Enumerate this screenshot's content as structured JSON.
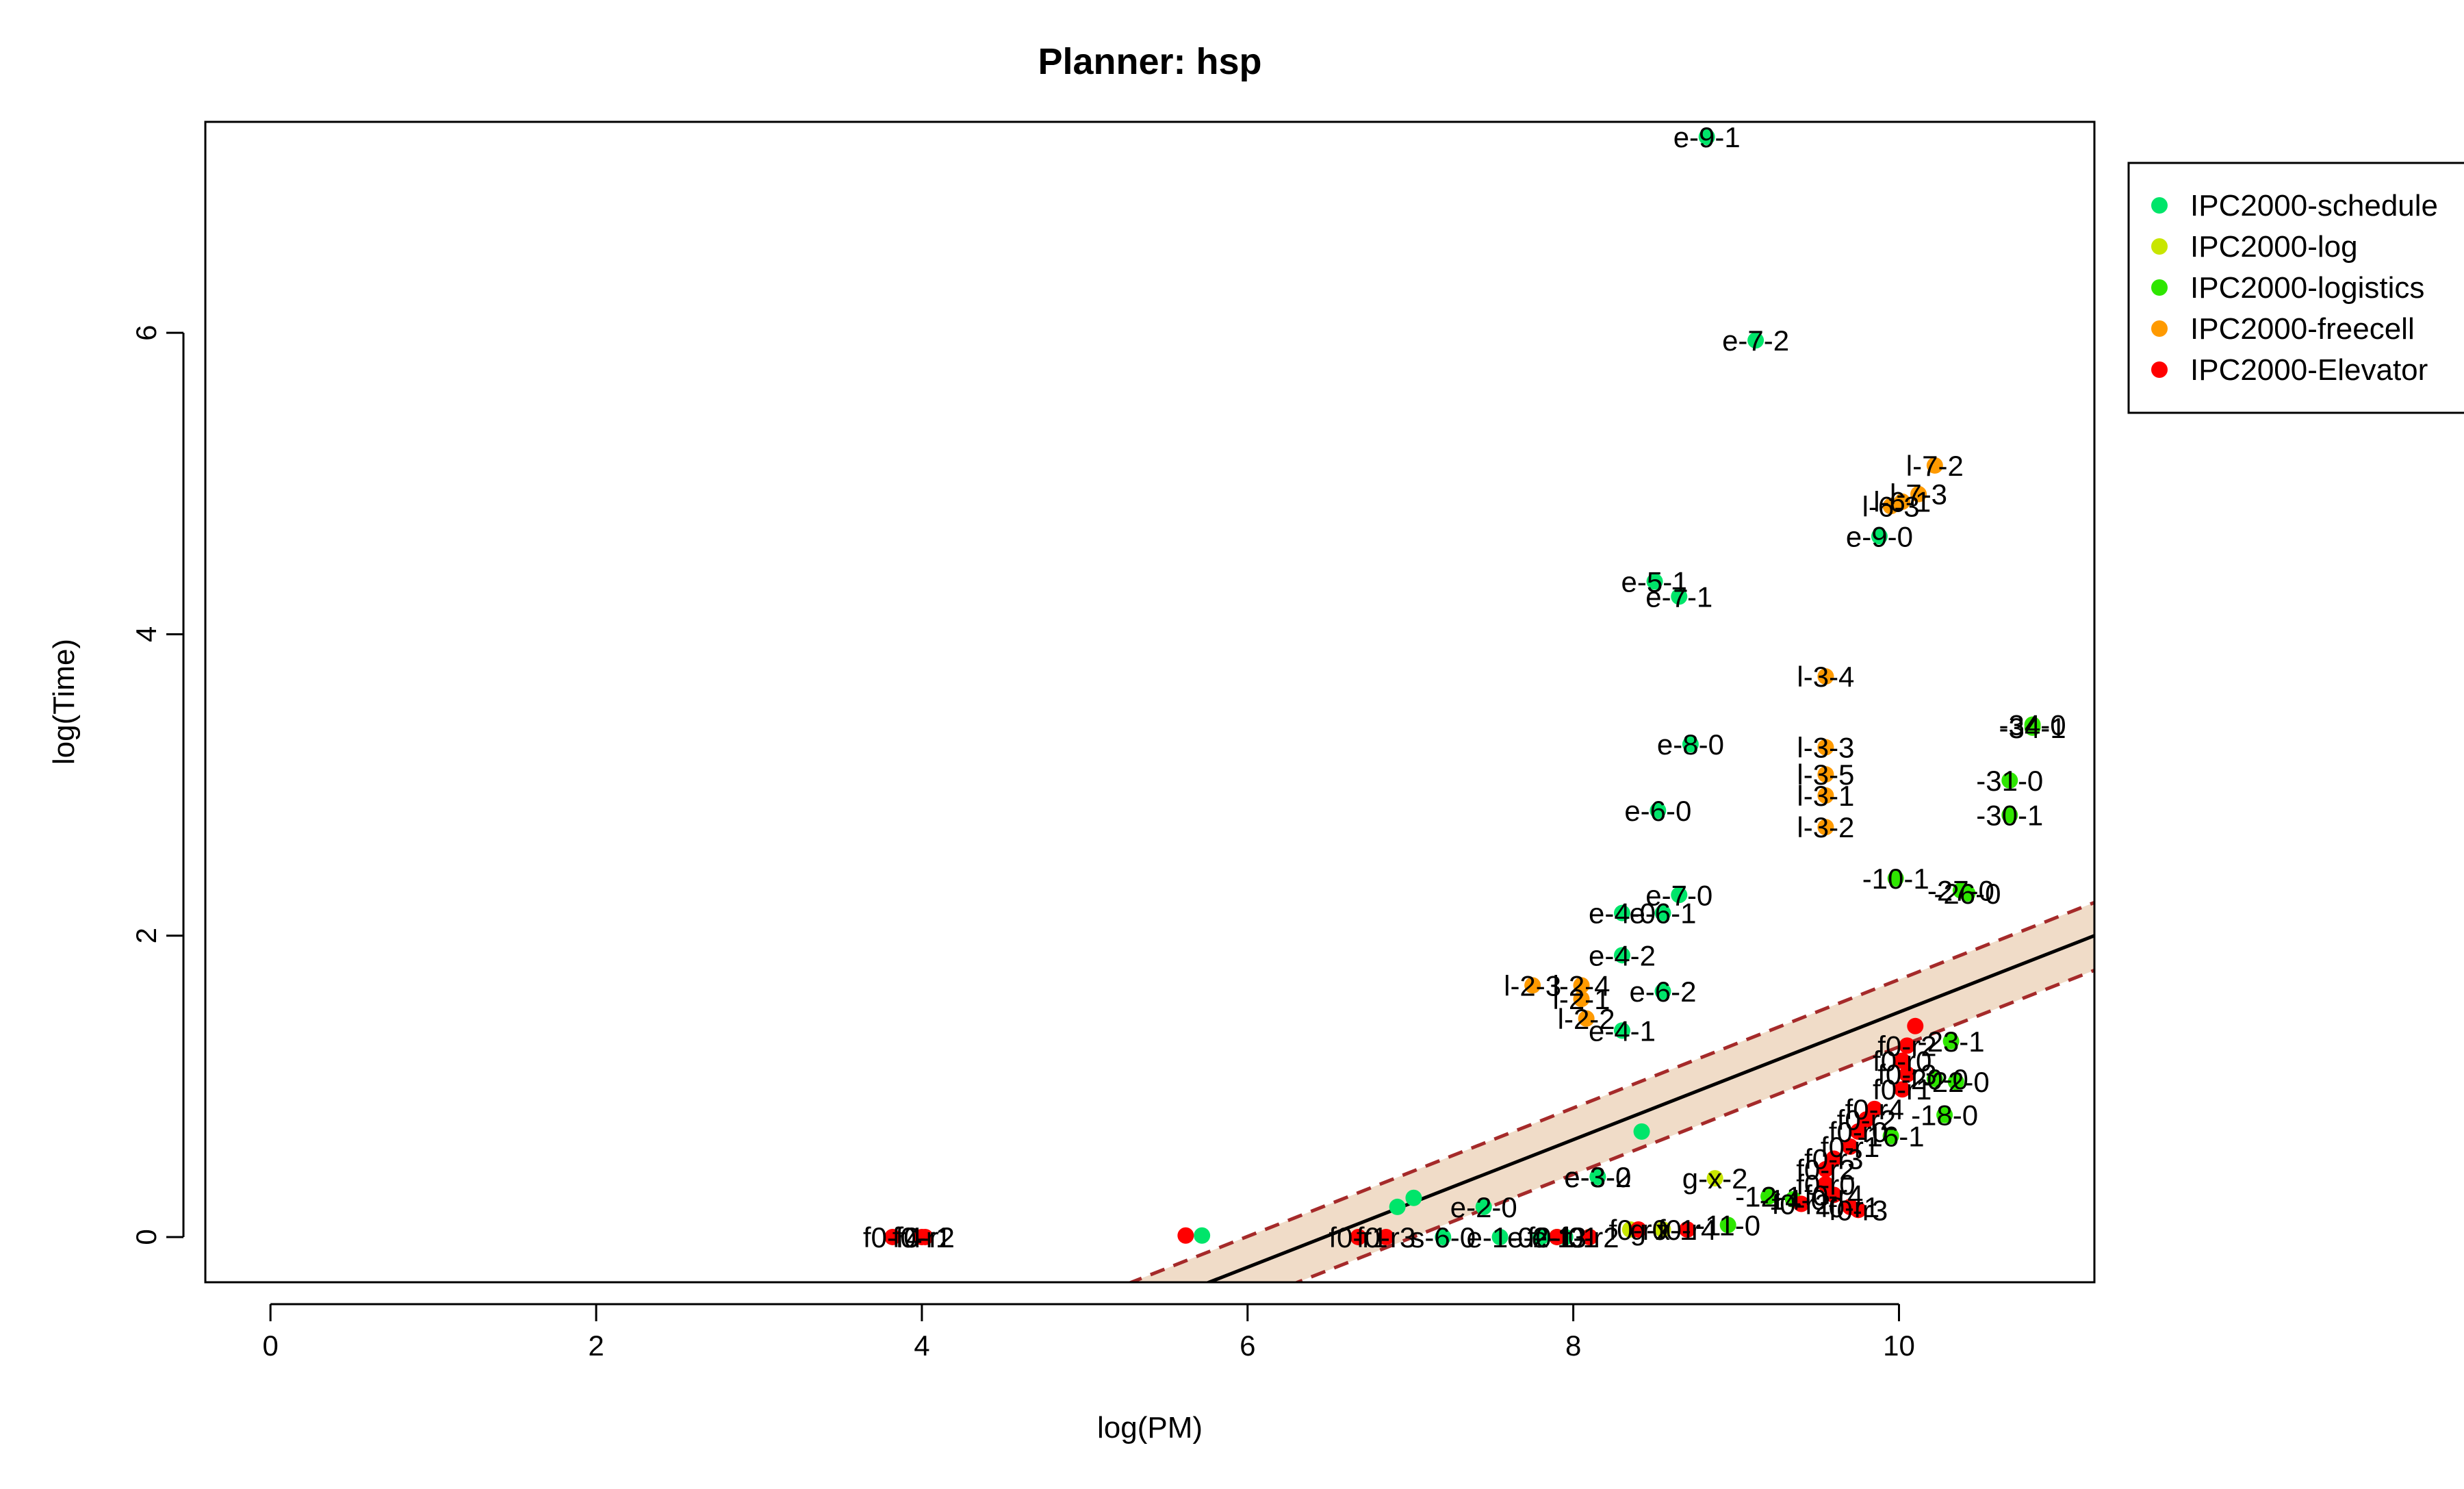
{
  "chart_data": {
    "type": "scatter",
    "title": "Planner: hsp",
    "xlabel": "log(PM)",
    "ylabel": "log(Time)",
    "xlim": [
      -0.4,
      11.2
    ],
    "ylim": [
      -0.3,
      7.4
    ],
    "xticks": [
      0,
      2,
      4,
      6,
      8,
      10
    ],
    "yticks": [
      0,
      2,
      4,
      6
    ],
    "grid": false,
    "legend_position": "right-outside-top",
    "series": [
      {
        "name": "IPC2000-schedule",
        "color": "#00e56a",
        "points": [
          {
            "x": 8.82,
            "y": 7.3,
            "label": "e-9-1"
          },
          {
            "x": 9.12,
            "y": 5.95,
            "label": "e-7-2"
          },
          {
            "x": 9.88,
            "y": 4.65,
            "label": "e-9-0"
          },
          {
            "x": 8.5,
            "y": 4.35,
            "label": "e-5-1"
          },
          {
            "x": 8.65,
            "y": 4.25,
            "label": "e-7-1"
          },
          {
            "x": 8.72,
            "y": 3.27,
            "label": "e-8-0"
          },
          {
            "x": 8.52,
            "y": 2.83,
            "label": "e-6-0"
          },
          {
            "x": 8.65,
            "y": 2.27,
            "label": "e-7-0"
          },
          {
            "x": 8.3,
            "y": 2.15,
            "label": "e-4-0"
          },
          {
            "x": 8.55,
            "y": 2.15,
            "label": "e-6-1"
          },
          {
            "x": 8.3,
            "y": 1.87,
            "label": "e-4-2"
          },
          {
            "x": 8.55,
            "y": 1.63,
            "label": "e-6-2"
          },
          {
            "x": 8.3,
            "y": 1.37,
            "label": "e-4-1"
          },
          {
            "x": 8.15,
            "y": 0.4,
            "label": "e-3-0"
          },
          {
            "x": 8.15,
            "y": 0.4,
            "label": "e-3-2"
          },
          {
            "x": 7.45,
            "y": 0.2,
            "label": "e-2-0"
          },
          {
            "x": 6.92,
            "y": 0.2,
            "label": ""
          },
          {
            "x": 7.02,
            "y": 0.26,
            "label": ""
          },
          {
            "x": 8.42,
            "y": 0.7,
            "label": ""
          },
          {
            "x": 5.72,
            "y": 0.01,
            "label": ""
          },
          {
            "x": 7.2,
            "y": 0.0,
            "label": "s-6-0"
          },
          {
            "x": 7.55,
            "y": 0.0,
            "label": "e-1-0"
          },
          {
            "x": 7.8,
            "y": 0.0,
            "label": "e-2-1"
          },
          {
            "x": 7.95,
            "y": 0.0,
            "label": "e-1-1"
          }
        ]
      },
      {
        "name": "IPC2000-log",
        "color": "#c8e600",
        "points": [
          {
            "x": 8.87,
            "y": 0.39,
            "label": "g-x-2"
          },
          {
            "x": 8.55,
            "y": 0.05,
            "label": "g-x-1"
          },
          {
            "x": 8.35,
            "y": 0.05,
            "label": ""
          }
        ]
      },
      {
        "name": "IPC2000-logistics",
        "color": "#2ee600",
        "points": [
          {
            "x": 10.82,
            "y": 3.4,
            "label": "-34-0"
          },
          {
            "x": 10.82,
            "y": 3.38,
            "label": "-34-1"
          },
          {
            "x": 10.68,
            "y": 3.03,
            "label": "-31-0"
          },
          {
            "x": 10.68,
            "y": 2.8,
            "label": "-30-1"
          },
          {
            "x": 9.98,
            "y": 2.38,
            "label": "-10-1"
          },
          {
            "x": 10.38,
            "y": 2.3,
            "label": "-27-0"
          },
          {
            "x": 10.42,
            "y": 2.28,
            "label": "-26-0"
          },
          {
            "x": 10.32,
            "y": 1.3,
            "label": "-23-1"
          },
          {
            "x": 10.22,
            "y": 1.05,
            "label": "-20-0"
          },
          {
            "x": 10.35,
            "y": 1.03,
            "label": "-22-0"
          },
          {
            "x": 10.28,
            "y": 0.81,
            "label": "-18-0"
          },
          {
            "x": 9.95,
            "y": 0.67,
            "label": "-16-1"
          },
          {
            "x": 9.35,
            "y": 0.25,
            "label": "-14-0"
          },
          {
            "x": 9.2,
            "y": 0.27,
            "label": "-12-1"
          },
          {
            "x": 8.95,
            "y": 0.08,
            "label": "-11-0"
          },
          {
            "x": 8.1,
            "y": 0.0,
            "label": ""
          },
          {
            "x": 7.9,
            "y": 0.0,
            "label": ""
          }
        ]
      },
      {
        "name": "IPC2000-freecell",
        "color": "#ff9a00",
        "points": [
          {
            "x": 10.22,
            "y": 5.12,
            "label": "l-7-2"
          },
          {
            "x": 10.12,
            "y": 4.93,
            "label": "l-7-3"
          },
          {
            "x": 10.02,
            "y": 4.88,
            "label": "l-6-1"
          },
          {
            "x": 9.95,
            "y": 4.85,
            "label": "l-6-3"
          },
          {
            "x": 9.55,
            "y": 3.72,
            "label": "l-3-4"
          },
          {
            "x": 9.55,
            "y": 3.25,
            "label": "l-3-3"
          },
          {
            "x": 9.55,
            "y": 3.07,
            "label": "l-3-5"
          },
          {
            "x": 9.55,
            "y": 2.93,
            "label": "l-3-1"
          },
          {
            "x": 9.55,
            "y": 2.72,
            "label": "l-3-2"
          },
          {
            "x": 7.75,
            "y": 1.67,
            "label": "l-2-3"
          },
          {
            "x": 8.05,
            "y": 1.67,
            "label": "l-2-4"
          },
          {
            "x": 8.05,
            "y": 1.58,
            "label": "l-2-1"
          },
          {
            "x": 8.08,
            "y": 1.45,
            "label": "l-2-2"
          }
        ]
      },
      {
        "name": "IPC2000-Elevator",
        "color": "#ff0000",
        "points": [
          {
            "x": 5.62,
            "y": 0.01,
            "label": ""
          },
          {
            "x": 3.82,
            "y": 0.0,
            "label": "f0-r4"
          },
          {
            "x": 4.0,
            "y": 0.0,
            "label": "f0-r1"
          },
          {
            "x": 4.02,
            "y": 0.0,
            "label": "f0-r2"
          },
          {
            "x": 6.68,
            "y": 0.0,
            "label": "f0-r1"
          },
          {
            "x": 6.85,
            "y": 0.0,
            "label": "f0-r3"
          },
          {
            "x": 10.1,
            "y": 1.4,
            "label": ""
          },
          {
            "x": 10.05,
            "y": 1.27,
            "label": "f0-r2"
          },
          {
            "x": 10.02,
            "y": 1.17,
            "label": "f0-r0"
          },
          {
            "x": 10.05,
            "y": 1.08,
            "label": "f0-r3"
          },
          {
            "x": 10.02,
            "y": 0.98,
            "label": "f0-r1"
          },
          {
            "x": 9.85,
            "y": 0.85,
            "label": "f0-r4"
          },
          {
            "x": 9.8,
            "y": 0.78,
            "label": "f0-r2"
          },
          {
            "x": 9.75,
            "y": 0.7,
            "label": "f0-r0"
          },
          {
            "x": 9.7,
            "y": 0.6,
            "label": "f0-r1"
          },
          {
            "x": 9.6,
            "y": 0.52,
            "label": "f0-r3"
          },
          {
            "x": 9.55,
            "y": 0.45,
            "label": "f0-r2"
          },
          {
            "x": 9.55,
            "y": 0.35,
            "label": "f0-r0"
          },
          {
            "x": 9.6,
            "y": 0.28,
            "label": "f0-r4"
          },
          {
            "x": 9.7,
            "y": 0.2,
            "label": "f0-r1"
          },
          {
            "x": 9.75,
            "y": 0.18,
            "label": "f0-r3"
          },
          {
            "x": 9.4,
            "y": 0.22,
            "label": "f0-r2"
          },
          {
            "x": 8.4,
            "y": 0.05,
            "label": "f0-r0"
          },
          {
            "x": 8.7,
            "y": 0.05,
            "label": "f0-r4"
          },
          {
            "x": 7.9,
            "y": 0.0,
            "label": "f0-r3"
          },
          {
            "x": 8.1,
            "y": 0.0,
            "label": "f0-r2"
          }
        ]
      }
    ],
    "fit_line": {
      "x": [
        4.7,
        11.2
      ],
      "y": [
        -0.75,
        2.0
      ],
      "color": "#000000"
    },
    "confidence_band": {
      "upper": {
        "x": [
          4.7,
          11.2
        ],
        "y": [
          -0.55,
          2.22
        ]
      },
      "lower": {
        "x": [
          4.7,
          11.2
        ],
        "y": [
          -0.98,
          1.77
        ]
      },
      "fill": "#f0dcc8",
      "border_color": "#a52a2a"
    }
  }
}
